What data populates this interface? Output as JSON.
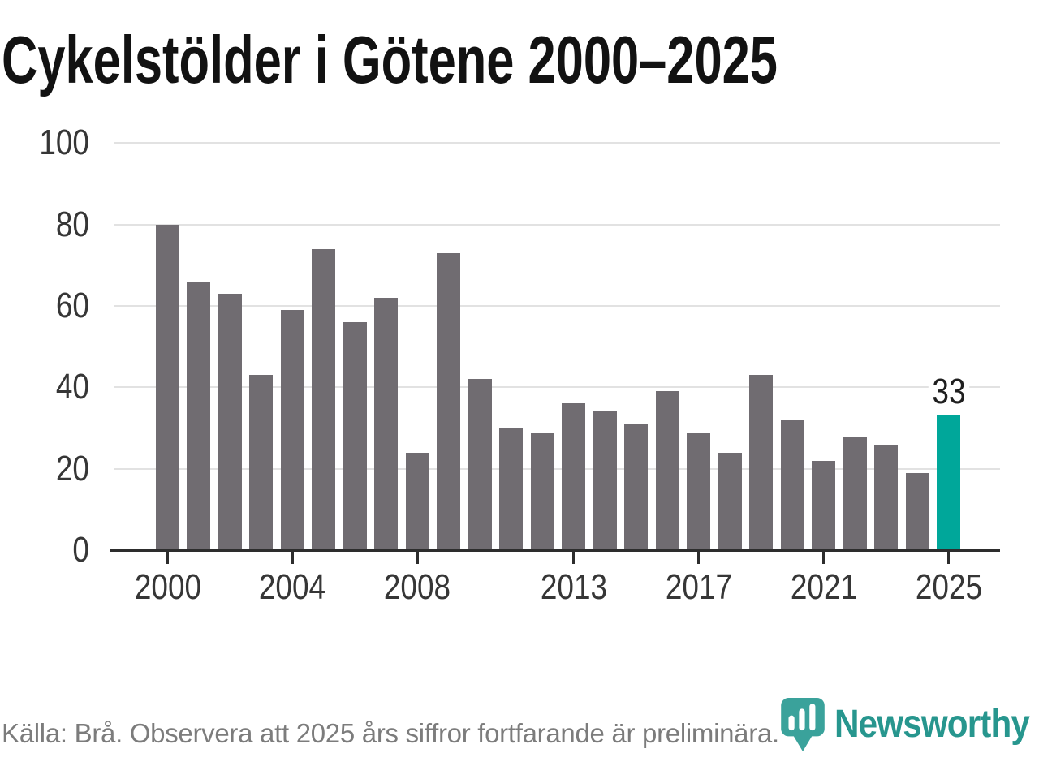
{
  "title": "Cykelstölder i Götene 2000–2025",
  "source_note": "Källa: Brå. Observera att 2025 års siffror fortfarande är preliminära.",
  "brand": {
    "name": "Newsworthy"
  },
  "colors": {
    "background": "#ffffff",
    "bar": "#706c71",
    "highlight": "#00a79a",
    "gridline": "#e2e2e2",
    "axis": "#2d2d2d",
    "title_text": "#121212",
    "tick_label": "#363636",
    "annotation_text": "#1f1f1f",
    "source_text": "#7c7c7c",
    "logo_teal": "#27968e",
    "logo_icon_teal": "#3aa29b"
  },
  "chart_data": {
    "type": "bar",
    "title": "Cykelstölder i Götene 2000–2025",
    "categories": [
      2000,
      2001,
      2002,
      2003,
      2004,
      2005,
      2006,
      2007,
      2008,
      2009,
      2010,
      2011,
      2012,
      2013,
      2014,
      2015,
      2016,
      2017,
      2018,
      2019,
      2020,
      2021,
      2022,
      2023,
      2024,
      2025
    ],
    "values": [
      80,
      66,
      63,
      43,
      59,
      74,
      56,
      62,
      24,
      73,
      42,
      30,
      29,
      36,
      34,
      31,
      39,
      29,
      24,
      43,
      32,
      22,
      28,
      26,
      19,
      33
    ],
    "xlabel": "",
    "ylabel": "",
    "ylim": [
      0,
      100
    ],
    "yticks": [
      0,
      20,
      40,
      60,
      80,
      100
    ],
    "xticks": [
      2000,
      2004,
      2008,
      2013,
      2017,
      2021,
      2025
    ],
    "grid": true,
    "legend_position": "none",
    "highlight_index": 25,
    "highlight_label": "33"
  }
}
